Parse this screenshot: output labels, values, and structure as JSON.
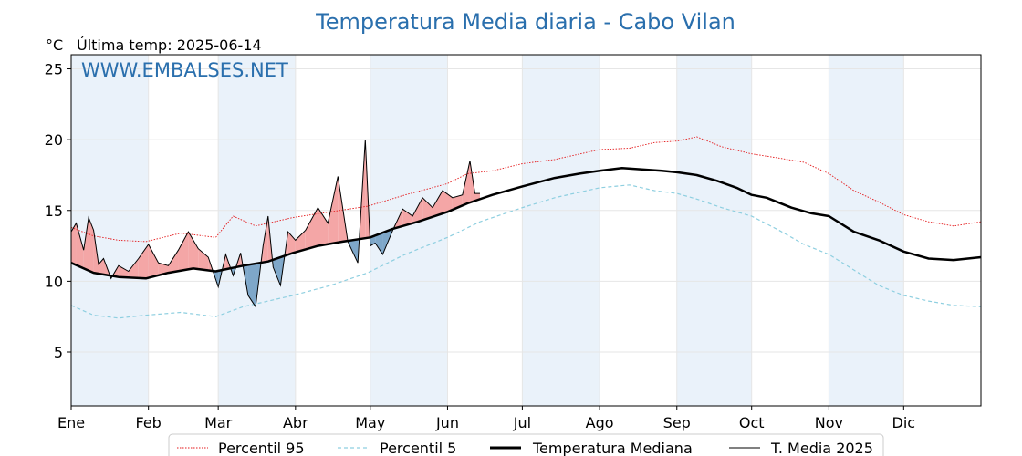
{
  "chart_data": {
    "type": "line",
    "title": "Temperatura Media diaria - Cabo Vilan",
    "unit_label": "°C",
    "last_temp_label": "Última temp: 2025-06-14",
    "watermark": "WWW.EMBALSES.NET",
    "xlabel": "",
    "ylabel": "",
    "ylim": [
      1.2,
      26
    ],
    "y_ticks": [
      5,
      10,
      15,
      20,
      25
    ],
    "x_months": [
      "Ene",
      "Feb",
      "Mar",
      "Abr",
      "May",
      "Jun",
      "Jul",
      "Ago",
      "Sep",
      "Oct",
      "Nov",
      "Dic"
    ],
    "month_start_days": [
      1,
      32,
      60,
      91,
      121,
      152,
      182,
      213,
      244,
      274,
      305,
      335
    ],
    "x_range_days": [
      1,
      366
    ],
    "grid": true,
    "legend_position": "bottom-center",
    "colors": {
      "p95": "#e41a1c",
      "p5": "#8ecfe0",
      "median": "#000000",
      "media2025": "#000000",
      "above_fill": "#f4a6a6",
      "below_fill": "#7ea7c9",
      "shade_band": "#eaf2fa"
    },
    "series": [
      {
        "name": "Percentil 95",
        "style": "dotted-red",
        "x": [
          1,
          10,
          20,
          31,
          45,
          59,
          66,
          75,
          90,
          105,
          120,
          135,
          152,
          160,
          170,
          182,
          195,
          213,
          225,
          235,
          244,
          252,
          262,
          274,
          285,
          295,
          305,
          315,
          325,
          335,
          345,
          355,
          366
        ],
        "y": [
          13.8,
          13.2,
          12.9,
          12.8,
          13.4,
          13.1,
          14.6,
          13.9,
          14.5,
          14.9,
          15.3,
          16.1,
          16.9,
          17.6,
          17.8,
          18.3,
          18.6,
          19.3,
          19.4,
          19.8,
          19.9,
          20.2,
          19.5,
          19.0,
          18.7,
          18.4,
          17.6,
          16.4,
          15.6,
          14.7,
          14.2,
          13.9,
          14.2
        ]
      },
      {
        "name": "Percentil 5",
        "style": "dashed-lightblue",
        "x": [
          1,
          10,
          20,
          31,
          45,
          59,
          70,
          80,
          90,
          105,
          120,
          135,
          152,
          165,
          182,
          195,
          213,
          225,
          235,
          244,
          252,
          262,
          274,
          285,
          295,
          305,
          315,
          325,
          335,
          345,
          355,
          366
        ],
        "y": [
          8.3,
          7.6,
          7.4,
          7.6,
          7.8,
          7.5,
          8.2,
          8.6,
          9.0,
          9.7,
          10.6,
          11.9,
          13.1,
          14.2,
          15.2,
          15.9,
          16.6,
          16.8,
          16.4,
          16.2,
          15.8,
          15.2,
          14.6,
          13.6,
          12.6,
          11.9,
          10.8,
          9.7,
          9.0,
          8.6,
          8.3,
          8.2
        ]
      },
      {
        "name": "Temperatura Mediana",
        "style": "thick-black",
        "x": [
          1,
          10,
          20,
          31,
          40,
          50,
          59,
          70,
          80,
          90,
          100,
          110,
          121,
          130,
          140,
          152,
          160,
          170,
          182,
          195,
          205,
          213,
          222,
          230,
          238,
          244,
          252,
          260,
          268,
          274,
          280,
          290,
          298,
          305,
          315,
          325,
          335,
          345,
          355,
          366
        ],
        "y": [
          11.3,
          10.6,
          10.3,
          10.2,
          10.6,
          10.9,
          10.7,
          11.1,
          11.4,
          12.0,
          12.5,
          12.8,
          13.1,
          13.7,
          14.2,
          14.9,
          15.5,
          16.1,
          16.7,
          17.3,
          17.6,
          17.8,
          18.0,
          17.9,
          17.8,
          17.7,
          17.5,
          17.1,
          16.6,
          16.1,
          15.9,
          15.2,
          14.8,
          14.6,
          13.5,
          12.9,
          12.1,
          11.6,
          11.5,
          11.7
        ]
      },
      {
        "name": "T. Media 2025",
        "style": "thin-black",
        "x": [
          1,
          3,
          6,
          8,
          10,
          12,
          14,
          17,
          20,
          24,
          28,
          32,
          36,
          40,
          44,
          48,
          52,
          56,
          60,
          63,
          66,
          69,
          72,
          75,
          78,
          80,
          82,
          85,
          88,
          91,
          95,
          100,
          104,
          108,
          112,
          116,
          119,
          121,
          123,
          126,
          130,
          134,
          138,
          142,
          146,
          150,
          154,
          158,
          161,
          163,
          165
        ],
        "y": [
          13.5,
          14.1,
          12.2,
          14.5,
          13.6,
          11.2,
          11.6,
          10.2,
          11.1,
          10.7,
          11.6,
          12.6,
          11.3,
          11.1,
          12.2,
          13.5,
          12.3,
          11.7,
          9.6,
          11.9,
          10.4,
          12.0,
          9.0,
          8.2,
          12.5,
          14.6,
          11.0,
          9.7,
          13.5,
          12.9,
          13.6,
          15.2,
          14.1,
          17.4,
          12.8,
          11.3,
          20.0,
          12.5,
          12.7,
          11.9,
          13.6,
          15.1,
          14.6,
          15.9,
          15.2,
          16.4,
          15.9,
          16.1,
          18.5,
          16.2,
          16.2
        ]
      }
    ]
  }
}
